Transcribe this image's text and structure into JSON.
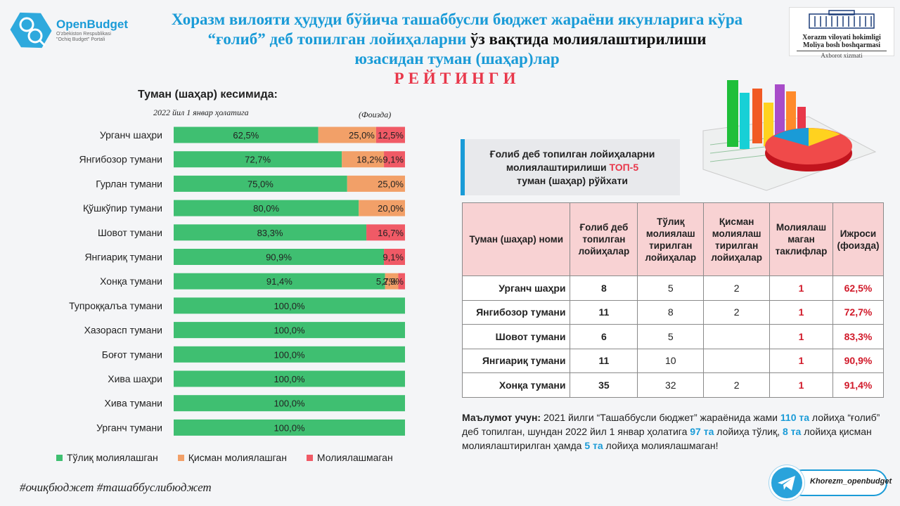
{
  "header": {
    "logo_name": "OpenBudget",
    "logo_sub": [
      "O'zbekiston Respublikasi",
      "\"Ochiq Budget\" Portali"
    ],
    "title_line1": "Хоразм вилояти ҳудуди бўйича ташаббусли бюджет жараёни якунларига кўра",
    "title_line2_blue": "“ғолиб” деб топилган лойиҳаларни",
    "title_line2_dark": " ўз вақтида молиялаштирилиши",
    "title_line3": "юзасидан туман (шаҳар)лар",
    "title_line4": "РЕЙТИНГИ",
    "gov_line1": "Xorazm viloyati hokimligi",
    "gov_line2": "Moliya bosh boshqarmasi",
    "gov_line3": "Axborot xizmati"
  },
  "chart_data": {
    "type": "bar",
    "orientation": "horizontal",
    "stacked": true,
    "title": "Туман (шаҳар) кесимида:",
    "subtitle": "2022 йил 1 январ ҳолатига",
    "unit_label": "(Фоизда)",
    "categories": [
      "Урганч шаҳри",
      "Янгибозор тумани",
      "Гурлан тумани",
      "Қўшкўпир тумани",
      "Шовот тумани",
      "Янгиариқ тумани",
      "Хонқа тумани",
      "Тупроққалъа тумани",
      "Хазорасп тумани",
      "Боғот тумани",
      "Хива шаҳри",
      "Хива тумани",
      "Урганч тумани"
    ],
    "series": [
      {
        "name": "Тўлиқ молиялашган",
        "color": "#3fbf71",
        "values": [
          62.5,
          72.7,
          75.0,
          80.0,
          83.3,
          90.9,
          91.4,
          100.0,
          100.0,
          100.0,
          100.0,
          100.0,
          100.0
        ],
        "labels": [
          "62,5%",
          "72,7%",
          "75,0%",
          "80,0%",
          "83,3%",
          "90,9%",
          "91,4%",
          "100,0%",
          "100,0%",
          "100,0%",
          "100,0%",
          "100,0%",
          "100,0%"
        ]
      },
      {
        "name": "Қисман молиялашган",
        "color": "#f2a068",
        "values": [
          25.0,
          18.2,
          25.0,
          20.0,
          0,
          0,
          5.7,
          0,
          0,
          0,
          0,
          0,
          0
        ],
        "labels": [
          "25,0%",
          "18,2%",
          "25,0%",
          "20,0%",
          "",
          "",
          "5,7%",
          "",
          "",
          "",
          "",
          "",
          ""
        ]
      },
      {
        "name": "Молиялашмаган",
        "color": "#f05a66",
        "values": [
          12.5,
          9.1,
          0,
          0,
          16.7,
          9.1,
          2.9,
          0,
          0,
          0,
          0,
          0,
          0
        ],
        "labels": [
          "12,5%",
          "9,1%",
          "",
          "",
          "16,7%",
          "9,1%",
          "2,9%",
          "",
          "",
          "",
          "",
          "",
          ""
        ]
      }
    ],
    "xlim": [
      0,
      100
    ],
    "legend": "bottom"
  },
  "hashtags": "#очиқбюджет  #ташаббуслибюджет",
  "top5": {
    "line1": "Ғолиб деб топилган лойиҳаларни",
    "line2a": "молиялаштирилиши ",
    "line2b": "ТОП-5",
    "line3": "туман (шаҳар) рўйхати"
  },
  "table": {
    "headers": [
      "Туман (шаҳар) номи",
      "Ғолиб деб топилган лойиҳалар",
      "Тўлиқ молиялаш тирилган лойиҳалар",
      "Қисман молиялаш тирилган лойиҳалар",
      "Молиялаш маган таклифлар",
      "Ижроси (фоизда)"
    ],
    "rows": [
      [
        "Урганч шаҳри",
        "8",
        "5",
        "2",
        "1",
        "62,5%"
      ],
      [
        "Янгибозор тумани",
        "11",
        "8",
        "2",
        "1",
        "72,7%"
      ],
      [
        "Шовот тумани",
        "6",
        "5",
        "",
        "1",
        "83,3%"
      ],
      [
        "Янгиариқ тумани",
        "11",
        "10",
        "",
        "1",
        "90,9%"
      ],
      [
        "Хонқа тумани",
        "35",
        "32",
        "2",
        "1",
        "91,4%"
      ]
    ]
  },
  "info": {
    "lead": "Маълумот учун:",
    "t1": " 2021 йилги “Ташаббусли бюджет” жараёнида жами ",
    "n1": "110 та",
    "t2": " лойиҳа “ғолиб” деб топилган, шундан 2022 йил 1 январ ҳолатига ",
    "n2": "97 та",
    "t3": " лойиҳа тўлиқ, ",
    "n3": "8 та",
    "t4": " лойиҳа қисман молиялаштирилган ҳамда ",
    "n4": "5 та",
    "t5": " лойиҳа молиялашмаган!"
  },
  "telegram": {
    "handle": "Khorezm_openbudget",
    "icon": "telegram-icon"
  }
}
